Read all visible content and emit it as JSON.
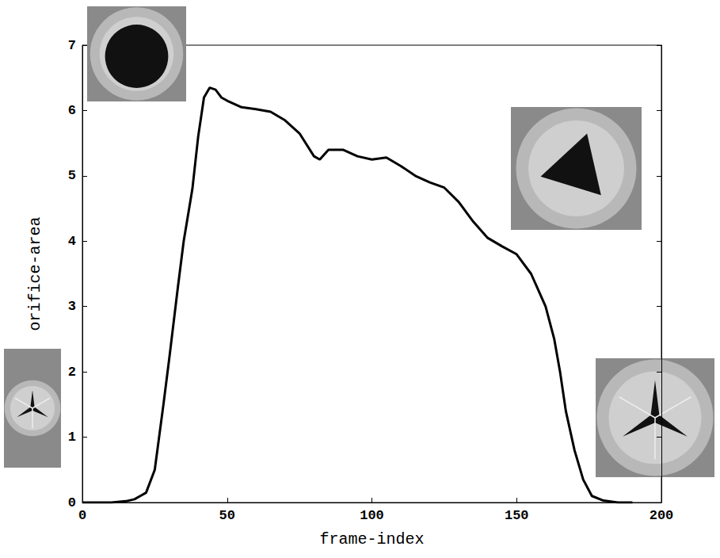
{
  "chart_data": {
    "type": "line",
    "x_label": "frame-index",
    "y_label": "orifice-area",
    "x": [
      0,
      5,
      10,
      15,
      18,
      20,
      22,
      25,
      28,
      30,
      33,
      35,
      38,
      40,
      42,
      44,
      46,
      48,
      50,
      55,
      60,
      65,
      70,
      75,
      80,
      82,
      85,
      90,
      95,
      100,
      105,
      110,
      115,
      120,
      125,
      130,
      135,
      140,
      145,
      150,
      155,
      158,
      160,
      163,
      165,
      167,
      170,
      173,
      176,
      180,
      185,
      190
    ],
    "values": [
      0,
      0,
      0,
      0.02,
      0.05,
      0.1,
      0.15,
      0.5,
      1.5,
      2.2,
      3.3,
      4.0,
      4.8,
      5.6,
      6.2,
      6.35,
      6.32,
      6.2,
      6.15,
      6.05,
      6.02,
      5.98,
      5.85,
      5.65,
      5.3,
      5.25,
      5.4,
      5.4,
      5.3,
      5.25,
      5.28,
      5.15,
      5.0,
      4.9,
      4.82,
      4.6,
      4.3,
      4.05,
      3.92,
      3.8,
      3.5,
      3.2,
      3.0,
      2.5,
      2.0,
      1.4,
      0.8,
      0.35,
      0.1,
      0.03,
      0,
      0
    ],
    "color": "#000000",
    "xlim": [
      0,
      200
    ],
    "xticks": [
      0,
      50,
      100,
      150,
      200
    ],
    "ylim": [
      0,
      7
    ],
    "yticks": [
      0,
      1,
      2,
      3,
      4,
      5,
      6,
      7
    ],
    "grid": false
  }
}
